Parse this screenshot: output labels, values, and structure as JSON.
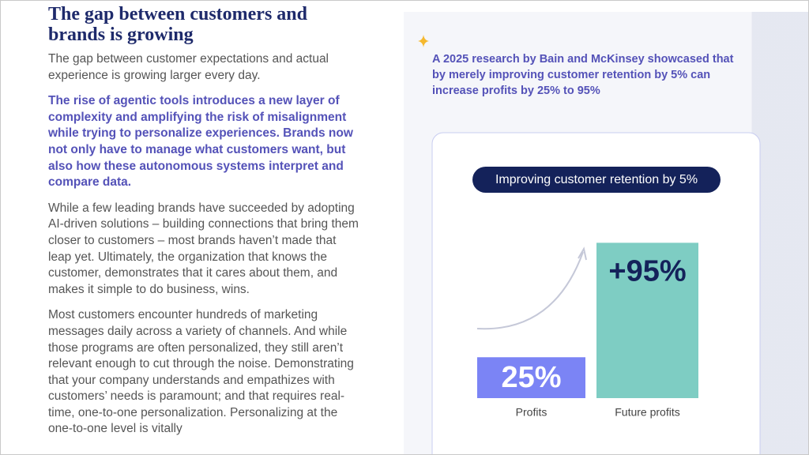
{
  "header": {
    "title": "The gap between customers and brands is growing"
  },
  "paragraphs": [
    "The gap between customer expectations and actual experience is growing larger every day.",
    "The rise of agentic tools introduces a new layer of complexity and amplifying the risk of misalignment while trying to personalize experiences. Brands now not only have to manage what customers want, but also how these autonomous systems interpret and compare data.",
    "While a few leading brands have succeeded by adopting AI-driven solutions – building connections that bring them closer to customers – most brands haven’t made that leap yet. Ultimately, the organization that knows the customer, demonstrates that it cares about them, and makes it simple to do business, wins.",
    "Most customers encounter hundreds of marketing messages daily across a variety of channels. And while those programs are often personalized, they still aren’t relevant enough to cut through the noise. Demonstrating that your company understands and empathizes with customers’ needs is paramount; and that requires real-time, one-to-one personalization. Personalizing at the one-to-one level is vitally"
  ],
  "callout": {
    "text": "A 2025 research by Bain and McKinsey showcased that by merely improving customer retention by 5% can increase profits by 25% to 95%"
  },
  "chart": {
    "type": "bar",
    "title": "Improving customer retention by 5%",
    "categories": [
      "Profits",
      "Future profits"
    ],
    "values": [
      25,
      95
    ],
    "value_labels": [
      "25%",
      "+95%"
    ],
    "colors": [
      "#7b84f5",
      "#7ecdc3"
    ]
  }
}
